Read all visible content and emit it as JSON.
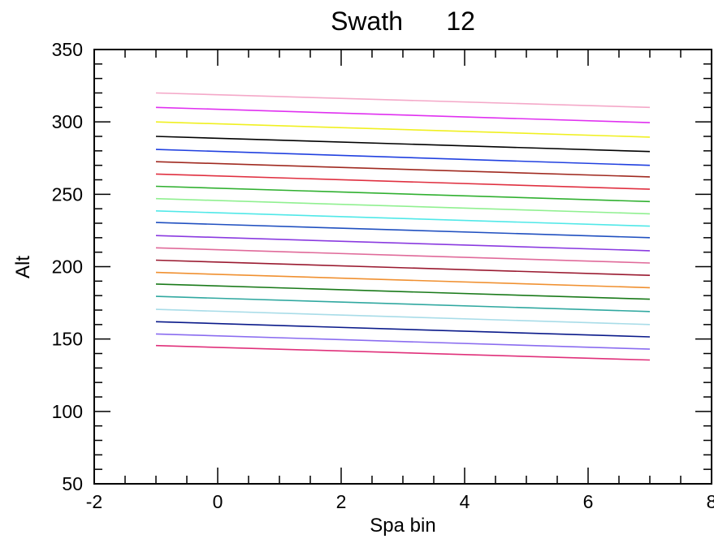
{
  "chart_data": {
    "type": "line",
    "title": "Swath      12",
    "xlabel": "Spa bin",
    "ylabel": "Alt",
    "xlim": [
      -2,
      8
    ],
    "ylim": [
      50,
      350
    ],
    "xticks": [
      -2,
      0,
      2,
      4,
      6,
      8
    ],
    "yticks": [
      50,
      100,
      150,
      200,
      250,
      300,
      350
    ],
    "grid": false,
    "legend": "none",
    "x": [
      -1,
      7
    ],
    "series": [
      {
        "color": "#e0307a",
        "values": [
          145.5,
          135.5
        ]
      },
      {
        "color": "#8a6cf0",
        "values": [
          153.5,
          143.0
        ]
      },
      {
        "color": "#0a1a8a",
        "values": [
          162.0,
          151.5
        ]
      },
      {
        "color": "#a8dce8",
        "values": [
          170.5,
          160.0
        ]
      },
      {
        "color": "#30a8a0",
        "values": [
          179.5,
          169.0
        ]
      },
      {
        "color": "#1a7a1a",
        "values": [
          188.0,
          177.5
        ]
      },
      {
        "color": "#f09030",
        "values": [
          196.0,
          185.5
        ]
      },
      {
        "color": "#9a1a30",
        "values": [
          204.5,
          194.0
        ]
      },
      {
        "color": "#e06a9a",
        "values": [
          213.0,
          202.5
        ]
      },
      {
        "color": "#8a3ae0",
        "values": [
          221.5,
          211.0
        ]
      },
      {
        "color": "#2050c0",
        "values": [
          230.5,
          220.0
        ]
      },
      {
        "color": "#50e8e8",
        "values": [
          238.5,
          228.0
        ]
      },
      {
        "color": "#90f090",
        "values": [
          247.0,
          236.5
        ]
      },
      {
        "color": "#30b030",
        "values": [
          255.5,
          245.0
        ]
      },
      {
        "color": "#e03040",
        "values": [
          264.0,
          253.5
        ]
      },
      {
        "color": "#a02a20",
        "values": [
          272.5,
          262.0
        ]
      },
      {
        "color": "#2040e0",
        "values": [
          281.0,
          270.0
        ]
      },
      {
        "color": "#000000",
        "values": [
          290.0,
          279.5
        ]
      },
      {
        "color": "#f0f020",
        "values": [
          300.0,
          289.5
        ]
      },
      {
        "color": "#e030f0",
        "values": [
          310.0,
          299.5
        ]
      },
      {
        "color": "#f4a8c8",
        "values": [
          320.0,
          310.0
        ]
      }
    ]
  }
}
